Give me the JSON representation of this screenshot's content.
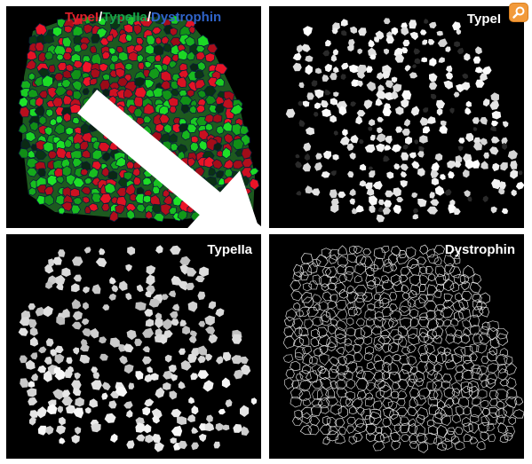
{
  "panels": {
    "merge": {
      "label_segments": [
        {
          "text": "TypeI",
          "color": "#e0202a"
        },
        {
          "text": "/",
          "color": "#ffffff"
        },
        {
          "text": "TypeIIa",
          "color": "#17a34a"
        },
        {
          "text": "/",
          "color": "#ffffff"
        },
        {
          "text": "Dystrophin",
          "color": "#2f63c8"
        }
      ]
    },
    "type1": {
      "label": "TypeI"
    },
    "type2": {
      "label": "TypeIIa"
    },
    "dystrophin": {
      "label": "Dystrophin"
    }
  },
  "overlay": {
    "search_icon": "magnifier-icon",
    "accent_color": "#f29a3a"
  }
}
